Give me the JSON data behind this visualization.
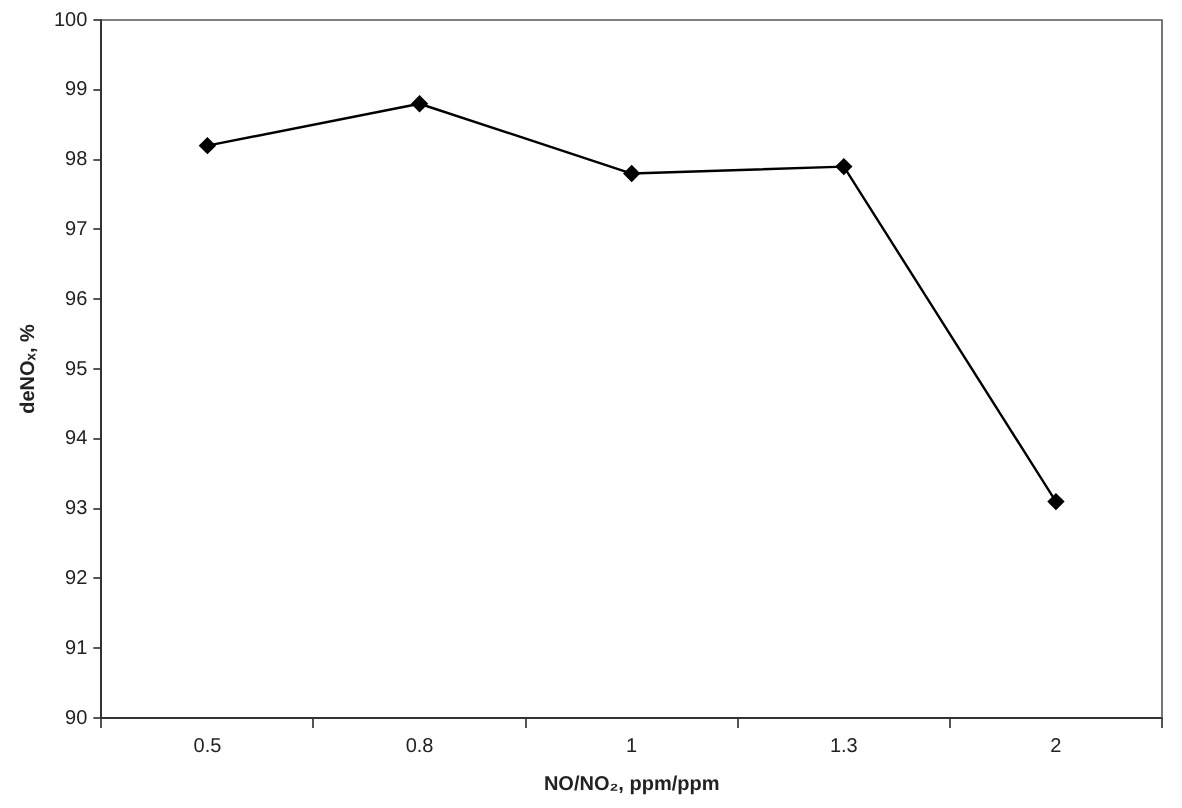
{
  "chart_data": {
    "type": "line",
    "xlabel": "NO/NO₂, ppm/ppm",
    "ylabel": "deNOₓ, %",
    "categories": [
      "0.5",
      "0.8",
      "1",
      "1.3",
      "2"
    ],
    "series": [
      {
        "color": "#000000",
        "values": [
          98.2,
          98.8,
          97.8,
          97.9,
          93.1
        ]
      }
    ],
    "ylim": [
      90,
      100
    ],
    "yticks": [
      90,
      91,
      92,
      93,
      94,
      95,
      96,
      97,
      98,
      99,
      100
    ],
    "grid": false,
    "legend": false,
    "marker": "diamond",
    "line_style": "solid"
  }
}
